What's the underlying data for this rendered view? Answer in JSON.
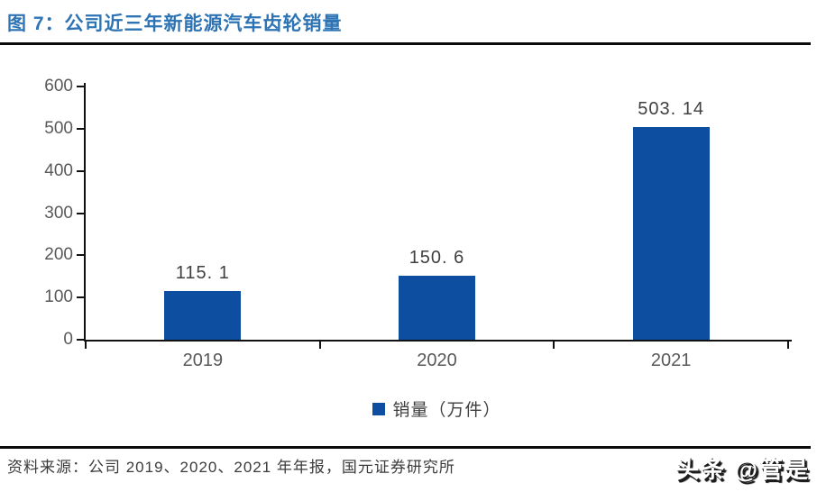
{
  "header": {
    "title": "图 7：公司近三年新能源汽车齿轮销量"
  },
  "chart_data": {
    "type": "bar",
    "title": "公司近三年新能源汽车齿轮销量",
    "categories": [
      "2019",
      "2020",
      "2021"
    ],
    "values": [
      115.1,
      150.6,
      503.14
    ],
    "data_labels": [
      "115. 1",
      "150. 6",
      "503. 14"
    ],
    "series_name": "销量（万件）",
    "xlabel": "",
    "ylabel": "",
    "ylim": [
      0,
      600
    ],
    "y_ticks": [
      0,
      100,
      200,
      300,
      400,
      500,
      600
    ],
    "grid": false,
    "legend_position": "bottom",
    "bar_color": "#0D4EA1"
  },
  "legend": {
    "label": "销量（万件）"
  },
  "footer": {
    "source": "资料来源：公司 2019、2020、2021 年年报，国元证券研究所"
  },
  "watermark": {
    "text": "头条 @管是"
  },
  "colors": {
    "title_blue": "#2E74B5",
    "bar_blue": "#0D4EA1",
    "axis_black": "#111111",
    "tick_label_gray": "#595959",
    "data_label_gray": "#3F3F3F"
  }
}
